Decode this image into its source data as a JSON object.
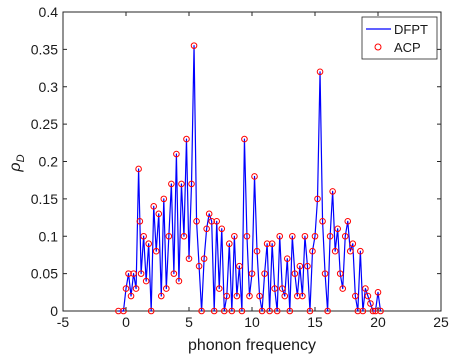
{
  "chart_data": {
    "type": "line",
    "title": "",
    "xlabel": "phonon frequency",
    "ylabel": "ρ_D",
    "xlim": [
      -5,
      25
    ],
    "ylim": [
      0,
      0.4
    ],
    "xticks": [
      -5,
      0,
      5,
      10,
      15,
      20,
      25
    ],
    "xtick_labels": [
      "-5",
      "0",
      "5",
      "10",
      "15",
      "20",
      "25"
    ],
    "yticks": [
      0,
      0.05,
      0.1,
      0.15,
      0.2,
      0.25,
      0.3,
      0.35,
      0.4
    ],
    "ytick_labels": [
      "0",
      "0.05",
      "0.1",
      "0.15",
      "0.2",
      "0.25",
      "0.3",
      "0.35",
      "0.4"
    ],
    "grid": false,
    "legend_position": "top-right",
    "colors": {
      "dfpt": "#0000ff",
      "acp": "#ff0000",
      "axes": "#262626"
    },
    "series": [
      {
        "name": "DFPT",
        "style": "line",
        "x": [
          -0.6,
          -0.2,
          0.0,
          0.2,
          0.4,
          0.6,
          0.8,
          1.0,
          1.1,
          1.2,
          1.4,
          1.6,
          1.8,
          2.0,
          2.2,
          2.4,
          2.6,
          2.8,
          3.0,
          3.2,
          3.4,
          3.6,
          3.8,
          4.0,
          4.2,
          4.4,
          4.6,
          4.8,
          5.0,
          5.2,
          5.4,
          5.6,
          5.8,
          6.0,
          6.2,
          6.4,
          6.6,
          6.8,
          7.0,
          7.2,
          7.4,
          7.6,
          7.8,
          8.0,
          8.2,
          8.4,
          8.6,
          8.8,
          9.0,
          9.2,
          9.4,
          9.6,
          9.8,
          10.0,
          10.2,
          10.4,
          10.6,
          10.8,
          11.0,
          11.2,
          11.4,
          11.6,
          11.8,
          12.0,
          12.2,
          12.4,
          12.6,
          12.8,
          13.0,
          13.2,
          13.4,
          13.6,
          13.8,
          14.0,
          14.2,
          14.4,
          14.6,
          14.8,
          15.0,
          15.2,
          15.4,
          15.6,
          15.8,
          16.0,
          16.2,
          16.4,
          16.6,
          16.8,
          17.0,
          17.2,
          17.4,
          17.6,
          17.8,
          18.0,
          18.2,
          18.4,
          18.6,
          18.8,
          19.0,
          19.2,
          19.4,
          19.6,
          19.8,
          20.0,
          20.2
        ],
        "y": [
          0.0,
          0.0,
          0.03,
          0.05,
          0.02,
          0.05,
          0.03,
          0.19,
          0.12,
          0.05,
          0.1,
          0.04,
          0.09,
          0.0,
          0.14,
          0.08,
          0.13,
          0.02,
          0.15,
          0.03,
          0.1,
          0.17,
          0.05,
          0.21,
          0.04,
          0.17,
          0.1,
          0.23,
          0.07,
          0.17,
          0.355,
          0.12,
          0.06,
          0.0,
          0.07,
          0.11,
          0.13,
          0.12,
          0.0,
          0.12,
          0.03,
          0.11,
          0.0,
          0.02,
          0.09,
          0.0,
          0.1,
          0.02,
          0.06,
          0.0,
          0.23,
          0.1,
          0.02,
          0.05,
          0.18,
          0.08,
          0.02,
          0.0,
          0.05,
          0.09,
          0.0,
          0.09,
          0.03,
          0.0,
          0.1,
          0.03,
          0.02,
          0.07,
          0.0,
          0.1,
          0.05,
          0.02,
          0.06,
          0.02,
          0.1,
          0.06,
          0.0,
          0.08,
          0.1,
          0.15,
          0.32,
          0.12,
          0.05,
          0.0,
          0.1,
          0.16,
          0.08,
          0.11,
          0.05,
          0.03,
          0.1,
          0.12,
          0.08,
          0.09,
          0.02,
          0.0,
          0.08,
          0.0,
          0.03,
          0.02,
          0.01,
          0.0,
          0.0,
          0.025,
          0.0
        ]
      },
      {
        "name": "ACP",
        "style": "circles",
        "x": [
          -0.6,
          -0.2,
          0.0,
          0.2,
          0.4,
          0.6,
          0.8,
          1.0,
          1.1,
          1.2,
          1.4,
          1.6,
          1.8,
          2.0,
          2.2,
          2.4,
          2.6,
          2.8,
          3.0,
          3.2,
          3.4,
          3.6,
          3.8,
          4.0,
          4.2,
          4.4,
          4.6,
          4.8,
          5.0,
          5.2,
          5.4,
          5.6,
          5.8,
          6.0,
          6.2,
          6.4,
          6.6,
          6.8,
          7.0,
          7.2,
          7.4,
          7.6,
          7.8,
          8.0,
          8.2,
          8.4,
          8.6,
          8.8,
          9.0,
          9.2,
          9.4,
          9.6,
          9.8,
          10.0,
          10.2,
          10.4,
          10.6,
          10.8,
          11.0,
          11.2,
          11.4,
          11.6,
          11.8,
          12.0,
          12.2,
          12.4,
          12.6,
          12.8,
          13.0,
          13.2,
          13.4,
          13.6,
          13.8,
          14.0,
          14.2,
          14.4,
          14.6,
          14.8,
          15.0,
          15.2,
          15.4,
          15.6,
          15.8,
          16.0,
          16.2,
          16.4,
          16.6,
          16.8,
          17.0,
          17.2,
          17.4,
          17.6,
          17.8,
          18.0,
          18.2,
          18.4,
          18.6,
          18.8,
          19.0,
          19.2,
          19.4,
          19.6,
          19.8,
          20.0,
          20.2
        ],
        "y": [
          0.0,
          0.0,
          0.03,
          0.05,
          0.02,
          0.05,
          0.03,
          0.19,
          0.12,
          0.05,
          0.1,
          0.04,
          0.09,
          0.0,
          0.14,
          0.08,
          0.13,
          0.02,
          0.15,
          0.03,
          0.1,
          0.17,
          0.05,
          0.21,
          0.04,
          0.17,
          0.1,
          0.23,
          0.07,
          0.17,
          0.355,
          0.12,
          0.06,
          0.0,
          0.07,
          0.11,
          0.13,
          0.12,
          0.0,
          0.12,
          0.03,
          0.11,
          0.0,
          0.02,
          0.09,
          0.0,
          0.1,
          0.02,
          0.06,
          0.0,
          0.23,
          0.1,
          0.02,
          0.05,
          0.18,
          0.08,
          0.02,
          0.0,
          0.05,
          0.09,
          0.0,
          0.09,
          0.03,
          0.0,
          0.1,
          0.03,
          0.02,
          0.07,
          0.0,
          0.1,
          0.05,
          0.02,
          0.06,
          0.02,
          0.1,
          0.06,
          0.0,
          0.08,
          0.1,
          0.15,
          0.32,
          0.12,
          0.05,
          0.0,
          0.1,
          0.16,
          0.08,
          0.11,
          0.05,
          0.03,
          0.1,
          0.12,
          0.08,
          0.09,
          0.02,
          0.0,
          0.08,
          0.0,
          0.03,
          0.02,
          0.01,
          0.0,
          0.0,
          0.025,
          0.0
        ]
      }
    ]
  }
}
